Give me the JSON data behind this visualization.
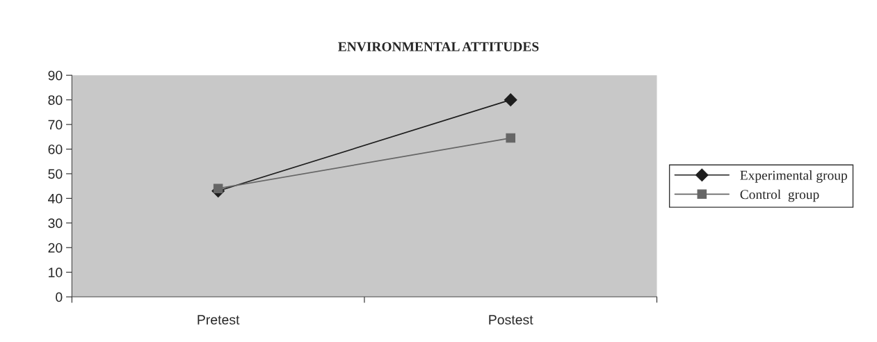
{
  "chart_data": {
    "type": "line",
    "title": "ENVIRONMENTAL ATTITUDES",
    "categories": [
      "Pretest",
      "Postest"
    ],
    "series": [
      {
        "name": "Experimental group",
        "color": "#1e1e1e",
        "values": [
          43,
          80
        ],
        "marker": "diamond"
      },
      {
        "name": "Control  group",
        "color": "#666666",
        "values": [
          44,
          64.5
        ],
        "marker": "square"
      }
    ],
    "ylim": [
      0,
      90
    ],
    "yticks": [
      0,
      10,
      20,
      30,
      40,
      50,
      60,
      70,
      80,
      90
    ],
    "grid": false,
    "legend": "right"
  }
}
